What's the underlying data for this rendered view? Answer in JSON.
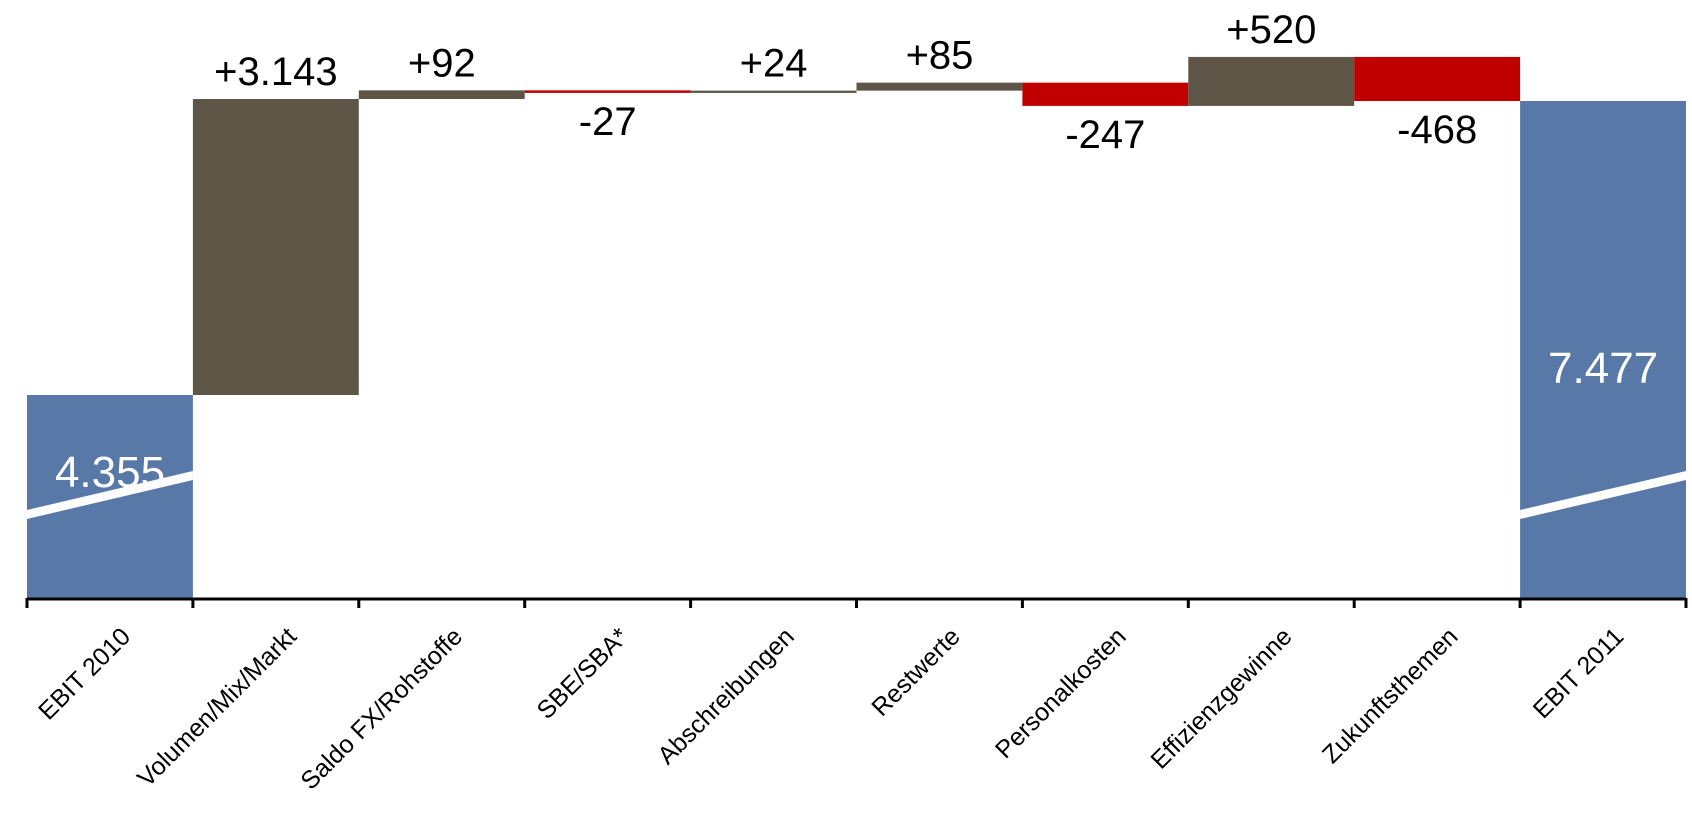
{
  "chart_data": {
    "type": "bar",
    "subtype": "waterfall",
    "categories": [
      "EBIT 2010",
      "Volumen/Mix/Markt",
      "Saldo  FX/Rohstoffe",
      "SBE/SBA*",
      "Abschreibungen",
      "Restwerte",
      "Personalkosten",
      "Effizienzgewinne",
      "Zukunftsthemen",
      "EBIT 2011"
    ],
    "values": [
      4355,
      3143,
      92,
      -27,
      24,
      85,
      -247,
      520,
      -468,
      7477
    ],
    "kinds": [
      "total",
      "delta",
      "delta",
      "delta",
      "delta",
      "delta",
      "delta",
      "delta",
      "delta",
      "total"
    ],
    "labels": [
      "4.355",
      "+3.143",
      "+92",
      "-27",
      "+24",
      "+85",
      "-247",
      "+520",
      "-468",
      "7.477"
    ],
    "axis_break": true,
    "colors": {
      "total": "#5878a8",
      "increase": "#5d5546",
      "decrease": "#c00000",
      "axis": "#000000",
      "break": "#ffffff"
    },
    "title": "",
    "xlabel": "",
    "ylabel": "",
    "grid": false,
    "legend": "none"
  }
}
